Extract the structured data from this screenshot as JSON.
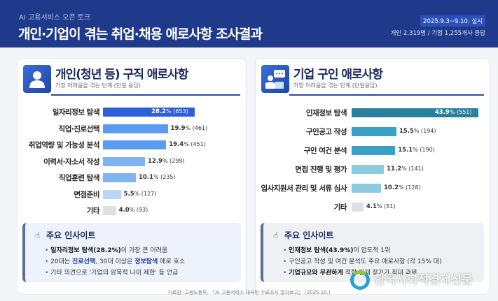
{
  "header": {
    "subtitle": "AI 고용서비스 오픈 토크",
    "title": "개인·기업이 겪는 취업·채용 애로사항 조사결과",
    "date": "2025.9.3~9.10. 실시",
    "respondents": "개인 2,319명 / 기업 1,255개사 응답"
  },
  "left": {
    "title": "개인(청년 등) 구직 애로사항",
    "subtitle": "가장 어려움을 겪는 단계 (단일 응답)",
    "icon": "person-icon",
    "insight_title": "주요 인사이트",
    "insights": [
      {
        "parts": [
          [
            "bk",
            "일자리정보 탐색(28.2%)"
          ],
          [
            "",
            "이 가장 큰 어려움"
          ]
        ]
      },
      {
        "parts": [
          [
            "",
            "20대는 "
          ],
          [
            "hl",
            "진로선택"
          ],
          [
            "",
            ", 30대 이상은 "
          ],
          [
            "hl",
            "정보탐색"
          ],
          [
            "",
            " 애로 호소"
          ]
        ]
      },
      {
        "parts": [
          [
            "",
            "기타 의견으로 '기업의 암묵적 나이 제한' 등 언급"
          ]
        ]
      }
    ]
  },
  "right": {
    "title": "기업 구인 애로사항",
    "subtitle": "가장 어려움을 겪는 단계 (단일응답)",
    "icon": "presenter-icon",
    "insight_title": "주요 인사이트",
    "insights": [
      {
        "parts": [
          [
            "bk",
            "인재정보 탐색(43.9%)"
          ],
          [
            "",
            "이 압도적 1위"
          ]
        ]
      },
      {
        "parts": [
          [
            "",
            "구인공고 작성 및 여건 분석도 주요 애로사항 (각 15% 대)"
          ]
        ]
      },
      {
        "parts": [
          [
            "bk",
            "기업규모와 무관하게"
          ],
          [
            "",
            " 적합 인재 찾기가 최대 과제"
          ]
        ]
      }
    ]
  },
  "source": "자료원: 고용노동부, 「AI 고용서비스 대국민 수요조사 결과보고」 (2025.10.)",
  "watermark": "한국사회적경제신문",
  "chart_data": [
    {
      "type": "bar",
      "orientation": "horizontal",
      "title": "개인(청년 등) 구직 애로사항",
      "subtitle": "가장 어려움을 겪는 단계 (단일 응답)",
      "categories": [
        "일자리정보 탐색",
        "직업·진로선택",
        "취업역량 및 가능성 분석",
        "이력서·자소서 작성",
        "직업훈련 탐색",
        "면접준비",
        "기타"
      ],
      "values": [
        28.2,
        19.9,
        19.4,
        12.9,
        10.1,
        5.5,
        4.0
      ],
      "counts": [
        653,
        461,
        451,
        299,
        235,
        127,
        93
      ],
      "unit": "%",
      "colors": [
        "#2d5fd8",
        "#5b9cf0",
        "#5b9cf0",
        "#7fb3f2",
        "#7fb3f2",
        "#b9d6f8",
        "#dde0e4"
      ]
    },
    {
      "type": "bar",
      "orientation": "horizontal",
      "title": "기업 구인 애로사항",
      "subtitle": "가장 어려움을 겪는 단계 (단일응답)",
      "categories": [
        "인재정보 탐색",
        "구인공고 작성",
        "구인 여건 분석",
        "면접 진행 및 평가",
        "입사지원서 관리 및 서류 심사",
        "기타"
      ],
      "values": [
        43.9,
        15.5,
        15.1,
        11.2,
        10.2,
        4.1
      ],
      "counts": [
        551,
        194,
        190,
        141,
        128,
        51
      ],
      "unit": "%",
      "colors": [
        "#2a7f9e",
        "#39a0c6",
        "#39a0c6",
        "#8ccbe0",
        "#8ccbe0",
        "#dde0e4"
      ]
    }
  ]
}
